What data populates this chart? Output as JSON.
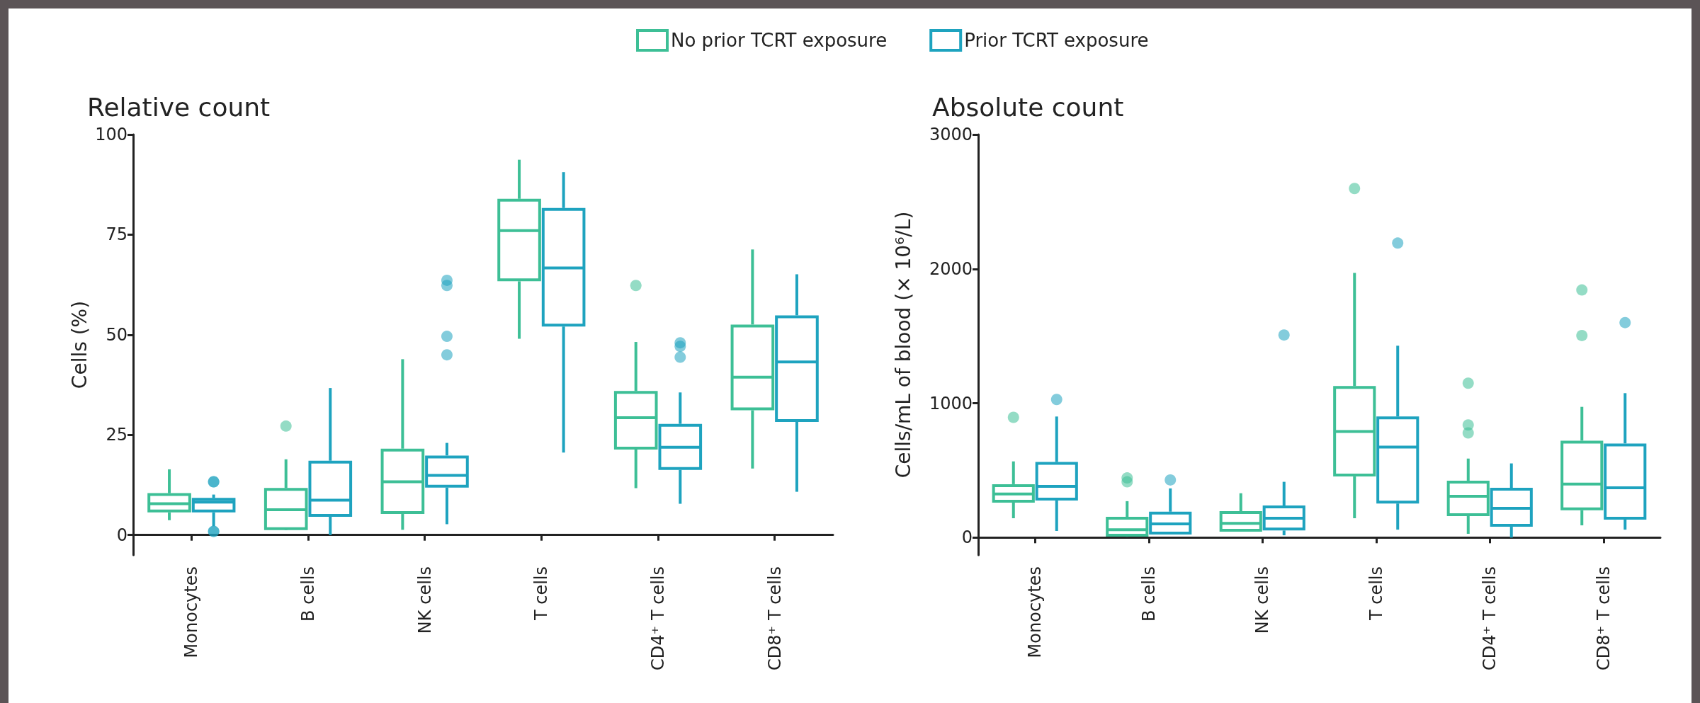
{
  "chart_data": [
    {
      "type": "box",
      "title": "Relative count",
      "ylabel": "Cells (%)",
      "categories": [
        "Monocytes",
        "B cells",
        "NK cells",
        "T cells",
        "CD4⁺ T cells",
        "CD8⁺ T cells"
      ],
      "ylim": [
        -5,
        100
      ],
      "yticks": [
        0,
        25,
        50,
        75,
        100
      ],
      "legend": "top",
      "series": [
        {
          "name": "No prior TCRT exposure",
          "color": "#3dbf96",
          "boxes": [
            {
              "low": 3.7,
              "q1": 6.0,
              "median": 7.8,
              "q3": 10.1,
              "high": 16.4
            },
            {
              "low": 1.6,
              "q1": 1.6,
              "median": 6.3,
              "q3": 11.4,
              "high": 18.9,
              "outliers": [
                27.2
              ]
            },
            {
              "low": 1.3,
              "q1": 5.6,
              "median": 13.3,
              "q3": 21.2,
              "high": 43.9
            },
            {
              "low": 49.0,
              "q1": 63.7,
              "median": 76.0,
              "q3": 83.6,
              "high": 93.7
            },
            {
              "low": 11.7,
              "q1": 21.7,
              "median": 29.3,
              "q3": 35.6,
              "high": 48.2,
              "outliers": [
                62.3
              ]
            },
            {
              "low": 16.6,
              "q1": 31.5,
              "median": 39.4,
              "q3": 52.2,
              "high": 71.3
            }
          ]
        },
        {
          "name": "Prior TCRT exposure",
          "color": "#1ea3bf",
          "boxes": [
            {
              "low": 2.2,
              "q1": 6.0,
              "median": 8.2,
              "q3": 8.9,
              "high": 10.1,
              "outliers": [
                13.3,
                13.3,
                0.9,
                0.9
              ]
            },
            {
              "low": 0,
              "q1": 4.9,
              "median": 8.7,
              "q3": 18.2,
              "high": 36.7
            },
            {
              "low": 2.7,
              "q1": 12.2,
              "median": 14.9,
              "q3": 19.5,
              "high": 23.0,
              "outliers": [
                63.6,
                62.3,
                49.6,
                45.0
              ]
            },
            {
              "low": 20.6,
              "q1": 52.4,
              "median": 66.7,
              "q3": 81.3,
              "high": 90.6
            },
            {
              "low": 7.8,
              "q1": 16.6,
              "median": 21.9,
              "q3": 27.4,
              "high": 35.6,
              "outliers": [
                48.0,
                47.1,
                44.4
              ]
            },
            {
              "low": 10.8,
              "q1": 28.6,
              "median": 43.2,
              "q3": 54.5,
              "high": 65.1
            }
          ]
        }
      ]
    },
    {
      "type": "box",
      "title": "Absolute count",
      "ylabel": "Cells/mL of blood (× 10⁶/L)",
      "categories": [
        "Monocytes",
        "B cells",
        "NK cells",
        "T cells",
        "CD4⁺ T cells",
        "CD8⁺ T cells"
      ],
      "ylim": [
        -130,
        3000
      ],
      "yticks": [
        0,
        1000,
        2000,
        3000
      ],
      "series": [
        {
          "color": "#3dbf96",
          "boxes": [
            {
              "low": 144,
              "q1": 271,
              "median": 324,
              "q3": 387,
              "high": 567,
              "outliers": [
                895
              ]
            },
            {
              "low": 17,
              "q1": 17,
              "median": 59,
              "q3": 144,
              "high": 271,
              "outliers": [
                444,
                415
              ]
            },
            {
              "low": 55,
              "q1": 55,
              "median": 106,
              "q3": 186,
              "high": 330
            },
            {
              "low": 144,
              "q1": 465,
              "median": 789,
              "q3": 1117,
              "high": 1970,
              "outliers": [
                2598
              ]
            },
            {
              "low": 28,
              "q1": 171,
              "median": 307,
              "q3": 413,
              "high": 588,
              "outliers": [
                1149,
                838,
                779
              ]
            },
            {
              "low": 91,
              "q1": 214,
              "median": 398,
              "q3": 711,
              "high": 973,
              "outliers": [
                1843,
                1504
              ]
            }
          ]
        },
        {
          "color": "#1ea3bf",
          "boxes": [
            {
              "low": 49,
              "q1": 286,
              "median": 381,
              "q3": 552,
              "high": 901,
              "outliers": [
                1028
              ]
            },
            {
              "low": 34,
              "q1": 34,
              "median": 102,
              "q3": 182,
              "high": 366,
              "outliers": [
                429
              ]
            },
            {
              "low": 17,
              "q1": 63,
              "median": 144,
              "q3": 228,
              "high": 415,
              "outliers": [
                1508
              ]
            },
            {
              "low": 59,
              "q1": 264,
              "median": 673,
              "q3": 891,
              "high": 1428,
              "outliers": [
                2192
              ]
            },
            {
              "low": 0,
              "q1": 91,
              "median": 218,
              "q3": 360,
              "high": 552
            },
            {
              "low": 59,
              "q1": 144,
              "median": 370,
              "q3": 690,
              "high": 1075,
              "outliers": [
                1600
              ]
            }
          ]
        }
      ]
    }
  ]
}
